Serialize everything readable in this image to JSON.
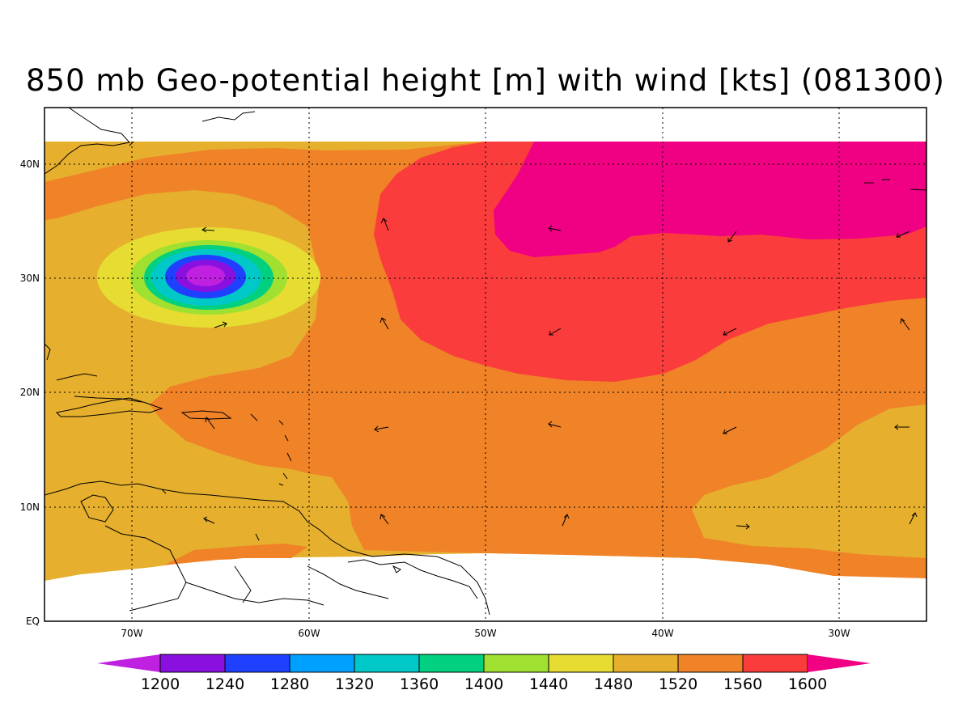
{
  "title": "850 mb Geo-potential height [m] with wind [kts] (081300)",
  "lat_ticks": [
    "40N",
    "30N",
    "20N",
    "10N",
    "EQ"
  ],
  "lon_ticks": [
    "70W",
    "60W",
    "50W",
    "40W",
    "30W"
  ],
  "colorbar": {
    "labels": [
      "1200",
      "1240",
      "1280",
      "1320",
      "1360",
      "1400",
      "1440",
      "1480",
      "1520",
      "1560",
      "1600"
    ],
    "colors": [
      "#c020e0",
      "#8a10e0",
      "#2040ff",
      "#00a0ff",
      "#00c8c8",
      "#00d080",
      "#a0e030",
      "#e6dc32",
      "#e6af2d",
      "#f08228",
      "#fa3c3c",
      "#f00082"
    ]
  },
  "fields": {
    "contour_colors": {
      "h1520": "#e6af2d",
      "h1560": "#f08228",
      "h1600": "#fa3c3c",
      "h1640": "#f00082",
      "h1480": "#e6dc32",
      "h1440": "#a0e030",
      "h1400": "#00d080",
      "h1360": "#00c8c8",
      "h1280": "#2040ff",
      "h1240": "#8a10e0",
      "h1200": "#c020e0"
    }
  }
}
